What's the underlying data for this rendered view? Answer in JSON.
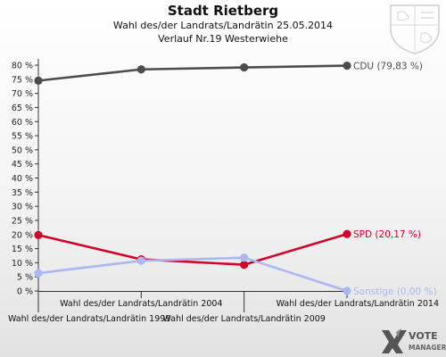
{
  "header": {
    "title": "Stadt Rietberg",
    "subtitle1": "Wahl des/der Landrats/Landrätin 25.05.2014",
    "subtitle2": "Verlauf Nr.19 Westerwiehe"
  },
  "branding": {
    "logo_line1": "VOTE",
    "logo_line2": "MANAGER",
    "crest_icon": "coat-of-arms-icon"
  },
  "chart_data": {
    "type": "line",
    "title": "Stadt Rietberg",
    "ylim": [
      0,
      80
    ],
    "y_ticks": [
      "0 %",
      "5 %",
      "10 %",
      "15 %",
      "20 %",
      "25 %",
      "30 %",
      "35 %",
      "40 %",
      "45 %",
      "50 %",
      "55 %",
      "60 %",
      "65 %",
      "70 %",
      "75 %",
      "80 %"
    ],
    "categories": [
      "Wahl des/der Landrats/Landrätin 1999",
      "Wahl des/der Landrats/Landrätin 2004",
      "Wahl des/der Landrats/Landrätin 2009",
      "Wahl des/der Landrats/Landrätin 2014"
    ],
    "grid": false,
    "series": [
      {
        "name": "CDU",
        "end_label": "CDU (79,83 %)",
        "color": "#4d4d4d",
        "values": [
          74.5,
          78.5,
          79.2,
          79.83
        ]
      },
      {
        "name": "SPD",
        "end_label": "SPD (20,17 %)",
        "color": "#d0002a",
        "values": [
          19.8,
          11.2,
          9.3,
          20.17
        ]
      },
      {
        "name": "Sonstige",
        "end_label": "Sonstige (0,00 %)",
        "color": "#a9b8ee",
        "values": [
          6.3,
          10.7,
          11.8,
          0.0
        ]
      }
    ]
  }
}
